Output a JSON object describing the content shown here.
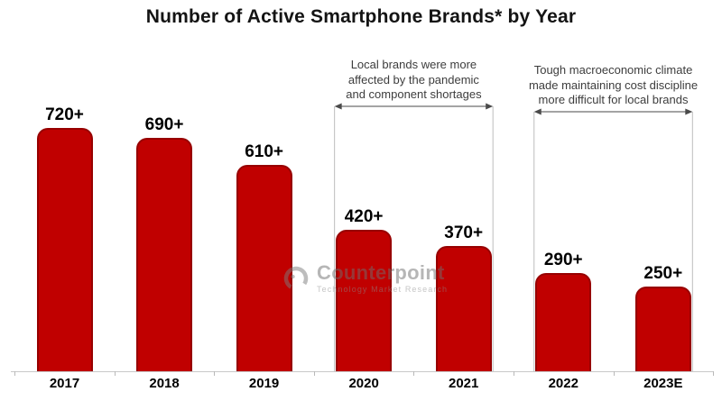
{
  "title": "Number of Active Smartphone Brands* by Year",
  "watermark": {
    "name": "Counterpoint",
    "tagline": "Technology Market Research"
  },
  "annotations": [
    {
      "lines": [
        "Local brands were more",
        "affected by the pandemic",
        "and component shortages"
      ],
      "span": [
        "2020",
        "2021"
      ]
    },
    {
      "lines": [
        "Tough macroeconomic climate",
        "made maintaining cost discipline",
        "more difficult for local brands"
      ],
      "span": [
        "2022",
        "2023E"
      ]
    }
  ],
  "chart_data": {
    "type": "bar",
    "title": "Number of Active Smartphone Brands* by Year",
    "categories": [
      "2017",
      "2018",
      "2019",
      "2020",
      "2021",
      "2022",
      "2023E"
    ],
    "values": [
      720,
      690,
      610,
      420,
      370,
      290,
      250
    ],
    "value_labels": [
      "720+",
      "690+",
      "610+",
      "420+",
      "370+",
      "290+",
      "250+"
    ],
    "bar_color": "#c00000",
    "bar_border_color": "#970000",
    "xlabel": "",
    "ylabel": "",
    "ylim": [
      0,
      760
    ],
    "grid": false,
    "legend": "none"
  }
}
